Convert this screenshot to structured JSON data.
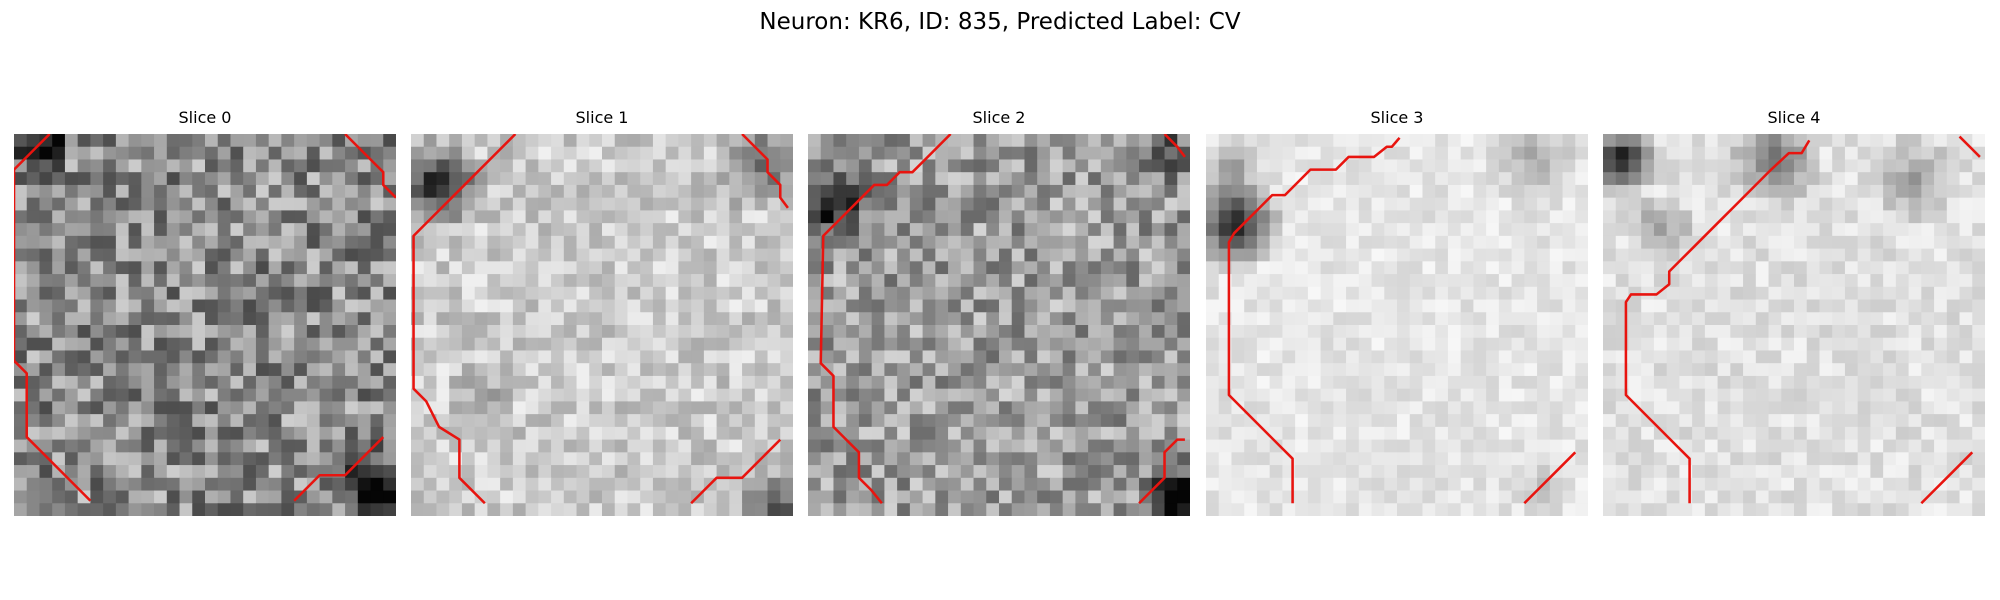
{
  "figure": {
    "title": "Neuron: KR6, ID: 835, Predicted Label: CV"
  },
  "colors": {
    "contour": "#e8140f",
    "background": "#ffffff"
  },
  "slices": [
    {
      "title": "Slice 0",
      "base_gray": 0.55,
      "noise": 0.26,
      "contours": [
        [
          [
            2.8,
            0
          ],
          [
            0,
            2.8
          ],
          [
            0,
            17.8
          ],
          [
            1,
            18.8
          ],
          [
            1,
            23.8
          ],
          [
            2,
            24.8
          ],
          [
            3,
            25.8
          ],
          [
            4,
            26.8
          ],
          [
            5,
            27.8
          ],
          [
            6,
            28.8
          ]
        ],
        [
          [
            26,
            0
          ],
          [
            27,
            1
          ],
          [
            28,
            2
          ],
          [
            29,
            3
          ],
          [
            29,
            4
          ],
          [
            30,
            5
          ]
        ],
        [
          [
            22,
            28.8
          ],
          [
            23,
            27.8
          ],
          [
            24,
            26.8
          ],
          [
            25,
            26.8
          ],
          [
            26,
            26.8
          ],
          [
            27,
            25.8
          ],
          [
            28,
            24.8
          ],
          [
            29,
            23.8
          ]
        ]
      ],
      "dark_spots": [
        [
          1.5,
          0.5,
          3,
          0.6
        ],
        [
          28.5,
          28,
          3.5,
          0.6
        ],
        [
          27,
          26,
          3,
          0.35
        ]
      ]
    },
    {
      "title": "Slice 1",
      "base_gray": 0.8,
      "noise": 0.14,
      "contours": [
        [
          [
            8.2,
            0
          ],
          [
            7.2,
            1
          ],
          [
            6.2,
            2
          ],
          [
            5.2,
            3
          ],
          [
            4.2,
            4
          ],
          [
            3.2,
            5
          ],
          [
            2.2,
            6
          ],
          [
            1.2,
            7
          ],
          [
            0.2,
            8
          ],
          [
            0.2,
            20
          ],
          [
            1.2,
            21
          ],
          [
            2.2,
            23
          ],
          [
            3.8,
            24
          ],
          [
            3.8,
            27
          ],
          [
            5.8,
            29
          ]
        ],
        [
          [
            26,
            0
          ],
          [
            27,
            1
          ],
          [
            28,
            2
          ],
          [
            28,
            3
          ],
          [
            29,
            4
          ],
          [
            29,
            5
          ],
          [
            29.6,
            5.8
          ]
        ],
        [
          [
            22,
            29
          ],
          [
            23,
            28
          ],
          [
            24,
            27
          ],
          [
            25,
            27
          ],
          [
            26,
            27
          ],
          [
            27,
            26
          ],
          [
            28,
            25
          ],
          [
            29,
            24
          ]
        ]
      ],
      "dark_spots": [
        [
          1.5,
          3.5,
          4,
          0.7
        ],
        [
          27,
          2,
          4,
          0.45
        ],
        [
          28,
          28.5,
          3,
          0.6
        ],
        [
          5,
          20,
          3,
          0.2
        ]
      ]
    },
    {
      "title": "Slice 2",
      "base_gray": 0.62,
      "noise": 0.22,
      "contours": [
        [
          [
            11.2,
            0
          ],
          [
            10.2,
            1
          ],
          [
            9.2,
            2
          ],
          [
            8.2,
            3
          ],
          [
            7.2,
            3
          ],
          [
            6.2,
            4
          ],
          [
            5.2,
            4
          ],
          [
            4.2,
            5
          ],
          [
            3.2,
            6
          ],
          [
            2.2,
            7
          ],
          [
            1.2,
            8
          ],
          [
            1,
            18
          ],
          [
            2,
            19
          ],
          [
            2,
            23
          ],
          [
            3,
            24
          ],
          [
            4,
            25
          ],
          [
            4,
            27
          ],
          [
            5,
            28
          ],
          [
            5.8,
            29
          ]
        ],
        [
          [
            28,
            0
          ],
          [
            29,
            1
          ],
          [
            29.6,
            1.8
          ]
        ],
        [
          [
            26,
            29
          ],
          [
            27,
            28
          ],
          [
            28,
            27
          ],
          [
            28,
            25
          ],
          [
            29,
            24
          ],
          [
            29.6,
            24
          ]
        ]
      ],
      "dark_spots": [
        [
          1.5,
          5,
          3.5,
          0.65
        ],
        [
          28.5,
          28,
          3.5,
          0.7
        ],
        [
          28,
          1,
          3,
          0.35
        ]
      ]
    },
    {
      "title": "Slice 3",
      "base_gray": 0.9,
      "noise": 0.07,
      "contours": [
        [
          [
            15.2,
            0.3
          ],
          [
            14.6,
            1
          ],
          [
            14.2,
            1
          ],
          [
            13.2,
            1.8
          ],
          [
            12.2,
            1.8
          ],
          [
            11.2,
            1.8
          ],
          [
            10.2,
            2.8
          ],
          [
            9.2,
            2.8
          ],
          [
            8.2,
            2.8
          ],
          [
            7.2,
            3.8
          ],
          [
            6.2,
            4.8
          ],
          [
            5.2,
            4.8
          ],
          [
            4.2,
            5.8
          ],
          [
            3.2,
            6.8
          ],
          [
            2.2,
            7.8
          ],
          [
            1.8,
            8.5
          ],
          [
            1.8,
            20.5
          ],
          [
            2.8,
            21.5
          ],
          [
            3.8,
            22.5
          ],
          [
            4.8,
            23.5
          ],
          [
            5.8,
            24.5
          ],
          [
            6.8,
            25.5
          ],
          [
            6.8,
            29
          ]
        ],
        [
          [
            25,
            29
          ],
          [
            26,
            28
          ],
          [
            27,
            27
          ],
          [
            28,
            26
          ],
          [
            29,
            25
          ]
        ]
      ],
      "dark_spots": [
        [
          1.8,
          6.5,
          4,
          0.8
        ],
        [
          1.5,
          2,
          2.5,
          0.35
        ],
        [
          25.5,
          1.5,
          4,
          0.25
        ],
        [
          26,
          27,
          3,
          0.12
        ]
      ]
    },
    {
      "title": "Slice 4",
      "base_gray": 0.88,
      "noise": 0.08,
      "contours": [
        [
          [
            16.2,
            0.5
          ],
          [
            15.6,
            1.5
          ],
          [
            14.6,
            1.5
          ],
          [
            13.2,
            2.8
          ],
          [
            12.2,
            3.8
          ],
          [
            11.2,
            4.8
          ],
          [
            10.2,
            5.8
          ],
          [
            9.2,
            6.8
          ],
          [
            8.2,
            7.8
          ],
          [
            7.2,
            8.8
          ],
          [
            6.2,
            9.8
          ],
          [
            5.2,
            10.8
          ],
          [
            5.2,
            11.8
          ],
          [
            4.2,
            12.6
          ],
          [
            3.2,
            12.6
          ],
          [
            2.2,
            12.6
          ],
          [
            1.8,
            13.2
          ],
          [
            1.8,
            20.5
          ],
          [
            2.8,
            21.5
          ],
          [
            3.8,
            22.5
          ],
          [
            4.8,
            23.5
          ],
          [
            5.8,
            24.5
          ],
          [
            6.8,
            25.5
          ],
          [
            6.8,
            29
          ]
        ],
        [
          [
            28,
            0.2
          ],
          [
            29,
            1.2
          ],
          [
            29.6,
            1.8
          ]
        ],
        [
          [
            25,
            29
          ],
          [
            26,
            28
          ],
          [
            27,
            27
          ],
          [
            28,
            26
          ],
          [
            29,
            25
          ]
        ]
      ],
      "dark_spots": [
        [
          1,
          1.5,
          3,
          0.85
        ],
        [
          13,
          1.5,
          4,
          0.45
        ],
        [
          24,
          3,
          4,
          0.25
        ],
        [
          4,
          7,
          3,
          0.3
        ]
      ]
    }
  ]
}
